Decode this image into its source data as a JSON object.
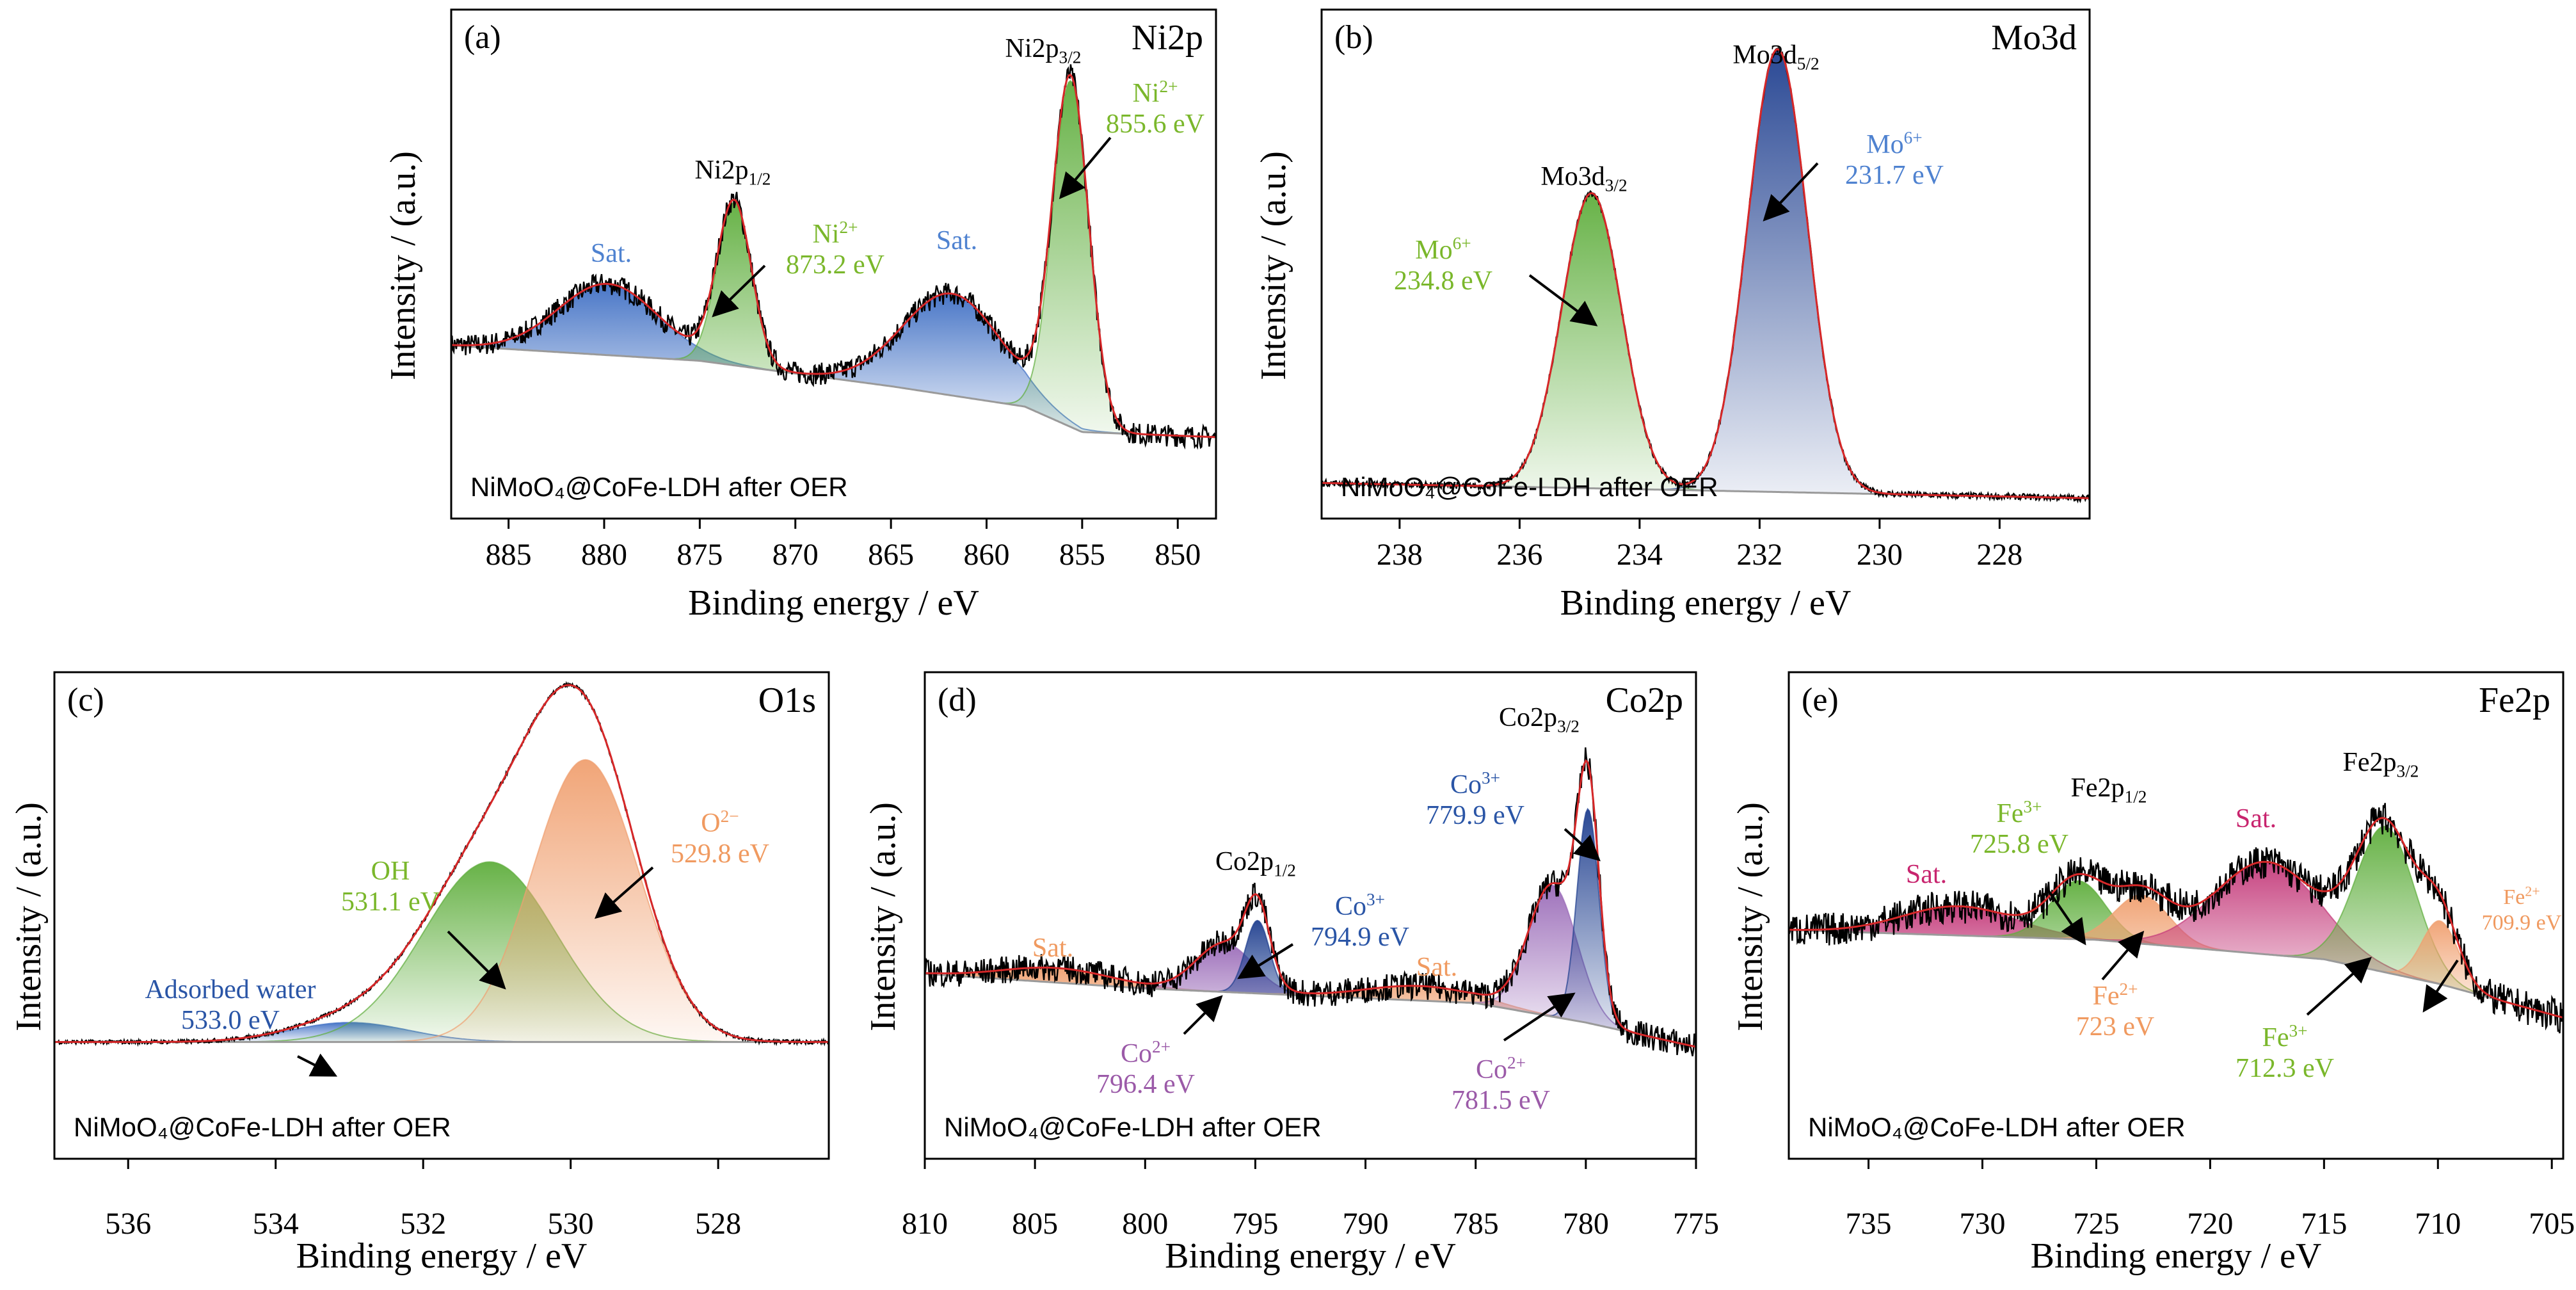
{
  "colors": {
    "frame": "#000000",
    "envelope": "#d62728",
    "background_line": "#9a9a9a",
    "raw": "#000000",
    "green_fill": "#5fae3d",
    "green_text": "#7ab72b",
    "blue_fill": "#3f6fc4",
    "blue_text": "#4f82d0",
    "navy_fill": "#1f3f8f",
    "navy_text": "#2a55a6",
    "purple_fill": "#9a6bb8",
    "purple_text": "#9b5aa8",
    "orange_fill": "#f0a070",
    "orange_text": "#f09a60",
    "magenta_fill": "#c43a7a",
    "magenta_text": "#c8246e"
  },
  "chart_data": [
    {
      "id": "a",
      "type": "area",
      "panel_label": "(a)",
      "title": "Ni2p",
      "sample_label": "NiMoO₄@CoFe-LDH after OER",
      "xlabel": "Binding energy / eV",
      "ylabel": "Intensity / (a.u.)",
      "x_reversed": true,
      "xlim": [
        888,
        848
      ],
      "xticks": [
        885,
        880,
        875,
        870,
        865,
        860,
        855,
        850
      ],
      "ylim": [
        0,
        1
      ],
      "background": {
        "x": [
          888,
          875,
          865,
          858,
          855,
          848
        ],
        "y": [
          0.34,
          0.31,
          0.26,
          0.22,
          0.17,
          0.16
        ]
      },
      "peaks": [
        {
          "label": "Sat.",
          "center": 879.8,
          "height": 0.14,
          "width": 2.6,
          "color": "blue_fill"
        },
        {
          "label": "Ni2p1/2",
          "center": 873.2,
          "height": 0.32,
          "width": 0.9,
          "color": "green_fill"
        },
        {
          "label": "Sat.",
          "center": 861.8,
          "height": 0.2,
          "width": 2.6,
          "color": "blue_fill"
        },
        {
          "label": "Ni2p3/2",
          "center": 855.6,
          "height": 0.68,
          "width": 0.95,
          "color": "green_fill"
        }
      ],
      "annotations": [
        {
          "line1": "Sat.",
          "line2": "",
          "color": "blue_text"
        },
        {
          "line1": "Ni2p",
          "sub": "1/2",
          "color": "black"
        },
        {
          "line1": "Ni",
          "sup": "2+",
          "line2": "873.2 eV",
          "color": "green_text"
        },
        {
          "line1": "Sat.",
          "line2": "",
          "color": "blue_text"
        },
        {
          "line1": "Ni2p",
          "sub": "3/2",
          "color": "black"
        },
        {
          "line1": "Ni",
          "sup": "2+",
          "line2": "855.6 eV",
          "color": "green_text"
        }
      ]
    },
    {
      "id": "b",
      "type": "area",
      "panel_label": "(b)",
      "title": "Mo3d",
      "sample_label": "NiMoO₄@CoFe-LDH after OER",
      "xlabel": "Binding energy / eV",
      "ylabel": "Intensity / (a.u.)",
      "x_reversed": true,
      "xlim": [
        239.3,
        226.5
      ],
      "xticks": [
        238,
        236,
        234,
        232,
        230,
        228
      ],
      "ylim": [
        0,
        1
      ],
      "background": {
        "x": [
          239.3,
          226.5
        ],
        "y": [
          0.07,
          0.04
        ]
      },
      "peaks": [
        {
          "label": "Mo3d3/2",
          "center": 234.8,
          "height": 0.58,
          "width": 0.5,
          "color": "green_fill"
        },
        {
          "label": "Mo3d5/2",
          "center": 231.7,
          "height": 0.87,
          "width": 0.5,
          "color": "navy_fill"
        }
      ],
      "annotations": [
        {
          "line1": "Mo3d",
          "sub": "3/2",
          "color": "black"
        },
        {
          "line1": "Mo",
          "sup": "6+",
          "line2": "234.8 eV",
          "color": "green_text"
        },
        {
          "line1": "Mo3d",
          "sub": "5/2",
          "color": "black"
        },
        {
          "line1": "Mo",
          "sup": "6+",
          "line2": "231.7 eV",
          "color": "blue_text"
        }
      ]
    },
    {
      "id": "c",
      "type": "area",
      "panel_label": "(c)",
      "title": "O1s",
      "sample_label": "NiMoO₄@CoFe-LDH after OER",
      "xlabel": "Binding energy / eV",
      "ylabel": "Intensity / (a.u.)",
      "x_reversed": true,
      "xlim": [
        537,
        526.5
      ],
      "xticks": [
        536,
        534,
        532,
        530,
        528
      ],
      "ylim": [
        0,
        1
      ],
      "background": {
        "x": [
          537,
          526.5
        ],
        "y": [
          0.24,
          0.24
        ]
      },
      "peaks": [
        {
          "label": "Adsorbed water",
          "center": 533.0,
          "height": 0.04,
          "width": 0.8,
          "color": "blue_fill"
        },
        {
          "label": "OH",
          "center": 531.1,
          "height": 0.37,
          "width": 0.9,
          "color": "green_fill"
        },
        {
          "label": "O2-",
          "center": 529.8,
          "height": 0.58,
          "width": 0.72,
          "color": "orange_fill"
        }
      ],
      "annotations": [
        {
          "line1": "Adsorbed water",
          "line2": "533.0 eV",
          "color": "navy_text"
        },
        {
          "line1": "OH",
          "line2": "531.1 eV",
          "color": "green_text"
        },
        {
          "line1": "O",
          "sup": "2−",
          "line2": "529.8 eV",
          "color": "orange_text"
        }
      ]
    },
    {
      "id": "d",
      "type": "area",
      "panel_label": "(d)",
      "title": "Co2p",
      "sample_label": "NiMoO₄@CoFe-LDH after OER",
      "xlabel": "Binding energy / eV",
      "ylabel": "Intensity / (a.u.)",
      "x_reversed": true,
      "xlim": [
        810,
        775
      ],
      "xticks": [
        810,
        805,
        800,
        795,
        790,
        785,
        780,
        775
      ],
      "ylim": [
        0,
        1
      ],
      "background": {
        "x": [
          810,
          800,
          790,
          785,
          780,
          775
        ],
        "y": [
          0.38,
          0.35,
          0.33,
          0.32,
          0.28,
          0.23
        ]
      },
      "peaks": [
        {
          "label": "Sat.",
          "center": 804.0,
          "height": 0.03,
          "width": 2.5,
          "color": "orange_fill"
        },
        {
          "label": "Co2+",
          "center": 796.4,
          "height": 0.1,
          "width": 1.3,
          "color": "purple_fill"
        },
        {
          "label": "Co2p1/2",
          "center": 794.9,
          "height": 0.15,
          "width": 0.55,
          "color": "navy_fill"
        },
        {
          "label": "Sat.",
          "center": 787.5,
          "height": 0.03,
          "width": 2.5,
          "color": "orange_fill"
        },
        {
          "label": "Co2+",
          "center": 781.5,
          "height": 0.27,
          "width": 1.1,
          "color": "purple_fill"
        },
        {
          "label": "Co2p3/2",
          "center": 779.9,
          "height": 0.44,
          "width": 0.5,
          "color": "navy_fill"
        }
      ],
      "annotations": [
        {
          "line1": "Sat.",
          "line2": "",
          "color": "orange_text"
        },
        {
          "line1": "Co2p",
          "sub": "1/2",
          "color": "black"
        },
        {
          "line1": "Co",
          "sup": "3+",
          "line2": "794.9 eV",
          "color": "navy_text"
        },
        {
          "line1": "Co",
          "sup": "2+",
          "line2": "796.4 eV",
          "color": "purple_text"
        },
        {
          "line1": "Sat.",
          "line2": "",
          "color": "orange_text"
        },
        {
          "line1": "Co2p",
          "sub": "3/2",
          "color": "black"
        },
        {
          "line1": "Co",
          "sup": "3+",
          "line2": "779.9 eV",
          "color": "navy_text"
        },
        {
          "line1": "Co",
          "sup": "2+",
          "line2": "781.5 eV",
          "color": "purple_text"
        }
      ]
    },
    {
      "id": "e",
      "type": "area",
      "panel_label": "(e)",
      "title": "Fe2p",
      "sample_label": "NiMoO₄@CoFe-LDH after OER",
      "xlabel": "Binding energy / eV",
      "ylabel": "Intensity / (a.u.)",
      "x_reversed": true,
      "xlim": [
        738.5,
        704.5
      ],
      "xticks": [
        735,
        730,
        725,
        720,
        715,
        710,
        705
      ],
      "ylim": [
        0,
        1
      ],
      "background": {
        "x": [
          738.5,
          725,
          715,
          710,
          704.5
        ],
        "y": [
          0.47,
          0.45,
          0.41,
          0.36,
          0.29
        ]
      },
      "peaks": [
        {
          "label": "Sat.",
          "center": 731.0,
          "height": 0.06,
          "width": 2.5,
          "color": "magenta_fill"
        },
        {
          "label": "Fe3+",
          "center": 725.8,
          "height": 0.12,
          "width": 1.2,
          "color": "green_fill"
        },
        {
          "label": "Fe2+",
          "center": 723.0,
          "height": 0.1,
          "width": 1.2,
          "color": "orange_fill"
        },
        {
          "label": "Sat.",
          "center": 717.5,
          "height": 0.19,
          "width": 2.3,
          "color": "magenta_fill"
        },
        {
          "label": "Fe3+",
          "center": 712.3,
          "height": 0.3,
          "width": 1.3,
          "color": "green_fill"
        },
        {
          "label": "Fe2+",
          "center": 709.9,
          "height": 0.13,
          "width": 0.8,
          "color": "orange_fill"
        }
      ],
      "annotations": [
        {
          "line1": "Sat.",
          "line2": "",
          "color": "magenta_text"
        },
        {
          "line1": "Fe",
          "sup": "3+",
          "line2": "725.8 eV",
          "color": "green_text"
        },
        {
          "line1": "Fe2p",
          "sub": "1/2",
          "color": "black"
        },
        {
          "line1": "Fe",
          "sup": "2+",
          "line2": "723 eV",
          "color": "orange_text"
        },
        {
          "line1": "Sat.",
          "line2": "",
          "color": "magenta_text"
        },
        {
          "line1": "Fe2p",
          "sub": "3/2",
          "color": "black"
        },
        {
          "line1": "Fe",
          "sup": "3+",
          "line2": "712.3 eV",
          "color": "green_text"
        },
        {
          "line1": "Fe",
          "sup": "2+",
          "line2": "709.9 eV",
          "color": "orange_text"
        }
      ]
    }
  ]
}
